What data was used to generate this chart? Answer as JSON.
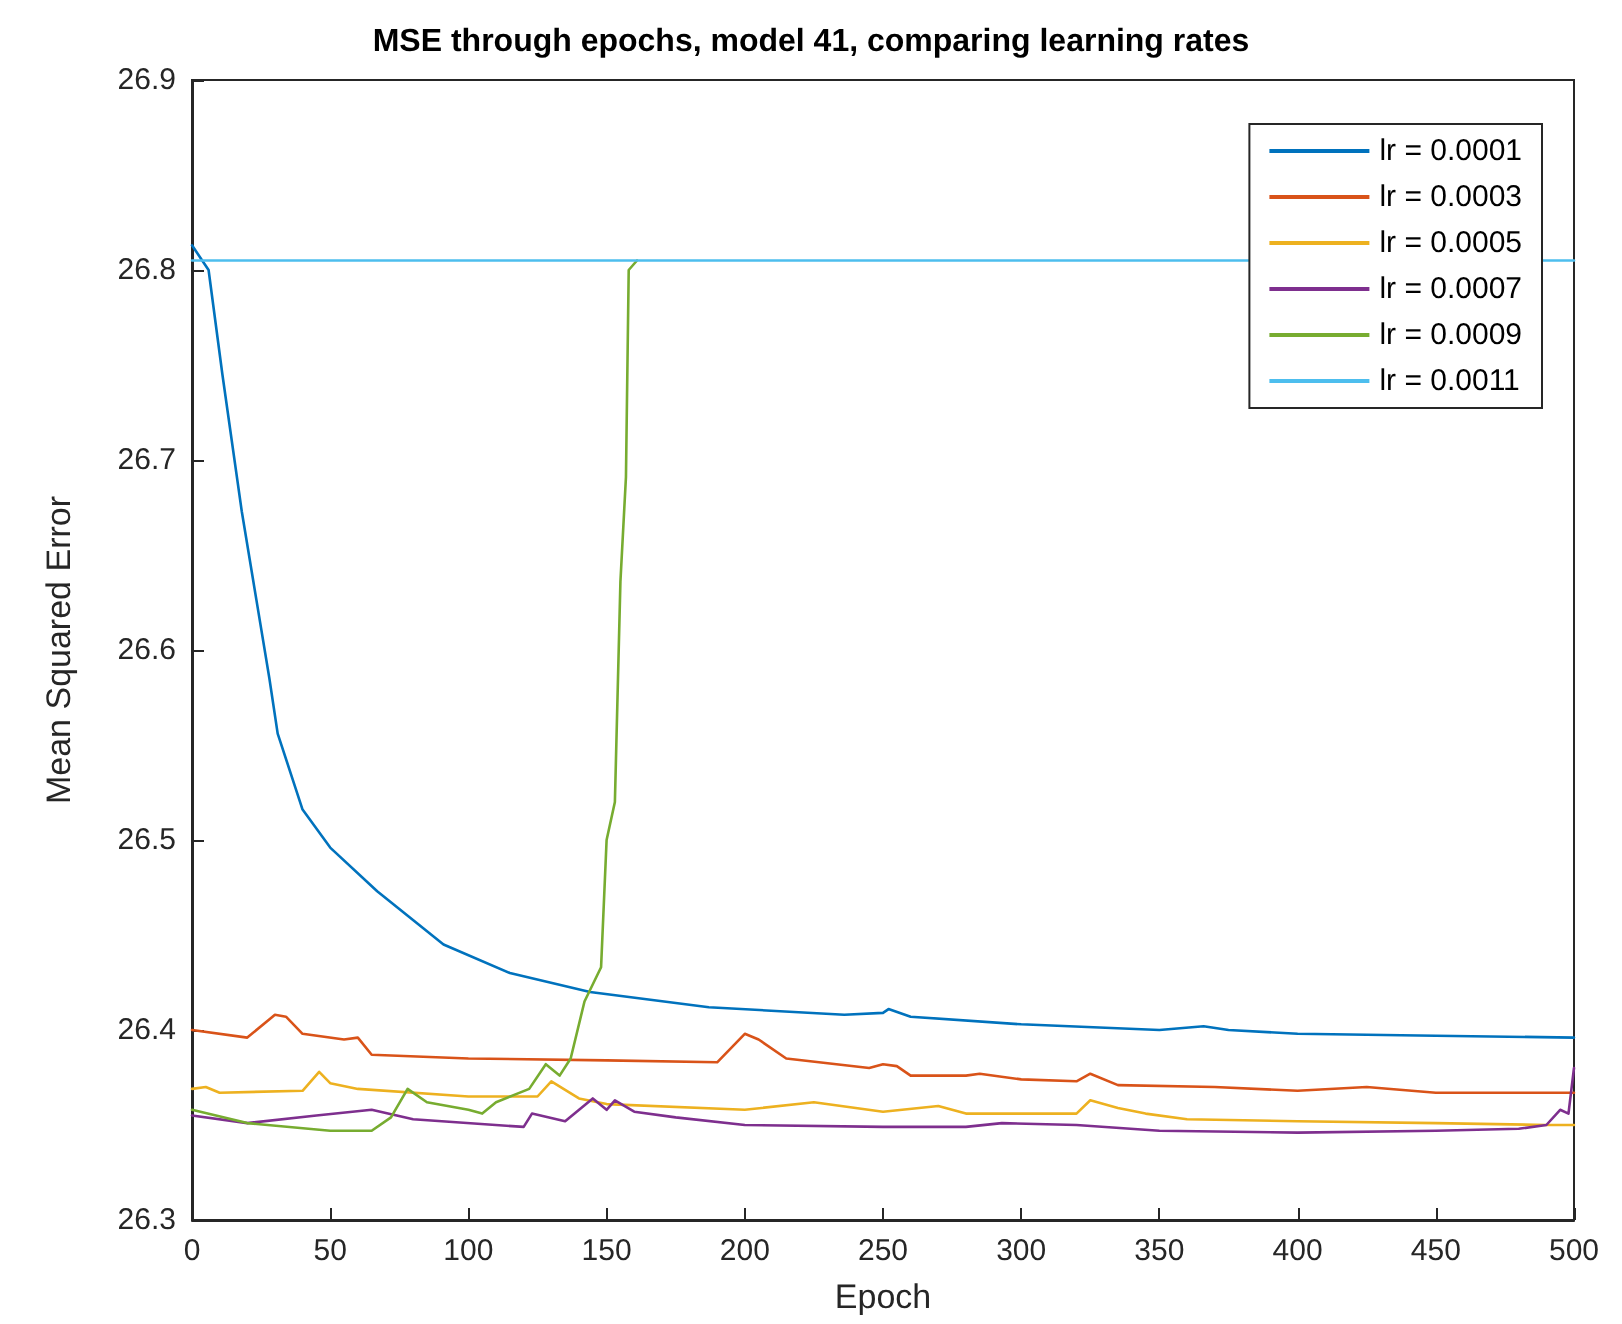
{
  "chart_data": {
    "type": "line",
    "title": "MSE through epochs, model 41, comparing learning rates",
    "xlabel": "Epoch",
    "ylabel": "Mean Squared Error",
    "xlim": [
      0,
      500
    ],
    "xticks": [
      0,
      50,
      100,
      150,
      200,
      250,
      300,
      350,
      400,
      450,
      500
    ],
    "ylim": [
      26.3,
      26.9
    ],
    "yticks": [
      26.3,
      26.4,
      26.5,
      26.6,
      26.7,
      26.8,
      26.9
    ],
    "grid": false,
    "legend": "top right",
    "marker": "none",
    "line_style": "solid",
    "series": [
      {
        "name": "lr = 0.0001",
        "color": "#0072bd",
        "x": [
          0,
          6,
          11,
          18,
          28,
          31,
          40,
          50,
          67,
          91,
          115,
          144,
          187,
          236,
          250,
          252,
          260,
          300,
          350,
          366,
          375,
          400,
          450,
          500
        ],
        "values": [
          26.813,
          26.8,
          26.745,
          26.673,
          26.585,
          26.556,
          26.516,
          26.496,
          26.473,
          26.445,
          26.43,
          26.42,
          26.412,
          26.408,
          26.409,
          26.411,
          26.407,
          26.403,
          26.4,
          26.402,
          26.4,
          26.398,
          26.397,
          26.396
        ]
      },
      {
        "name": "lr = 0.0003",
        "color": "#d95319",
        "x": [
          0,
          20,
          30,
          34,
          40,
          55,
          60,
          65,
          100,
          150,
          190,
          200,
          205,
          215,
          245,
          250,
          255,
          260,
          280,
          285,
          300,
          320,
          325,
          335,
          370,
          400,
          425,
          450,
          500
        ],
        "values": [
          26.4,
          26.396,
          26.408,
          26.407,
          26.398,
          26.395,
          26.396,
          26.387,
          26.385,
          26.384,
          26.383,
          26.398,
          26.395,
          26.385,
          26.38,
          26.382,
          26.381,
          26.376,
          26.376,
          26.377,
          26.374,
          26.373,
          26.377,
          26.371,
          26.37,
          26.368,
          26.37,
          26.367,
          26.367
        ]
      },
      {
        "name": "lr = 0.0005",
        "color": "#edb120",
        "x": [
          0,
          5,
          10,
          40,
          46,
          50,
          60,
          100,
          125,
          130,
          140,
          150,
          200,
          225,
          250,
          270,
          280,
          320,
          325,
          335,
          345,
          360,
          400,
          450,
          490,
          500
        ],
        "values": [
          26.369,
          26.37,
          26.367,
          26.368,
          26.378,
          26.372,
          26.369,
          26.365,
          26.365,
          26.373,
          26.364,
          26.361,
          26.358,
          26.362,
          26.357,
          26.36,
          26.356,
          26.356,
          26.363,
          26.359,
          26.356,
          26.353,
          26.352,
          26.351,
          26.35,
          26.35
        ]
      },
      {
        "name": "lr = 0.0007",
        "color": "#7e2f8e",
        "x": [
          0,
          20,
          45,
          65,
          80,
          120,
          123,
          135,
          145,
          150,
          153,
          160,
          175,
          200,
          250,
          280,
          293,
          320,
          350,
          400,
          450,
          480,
          490,
          495,
          498,
          500
        ],
        "values": [
          26.355,
          26.351,
          26.355,
          26.358,
          26.353,
          26.349,
          26.356,
          26.352,
          26.364,
          26.358,
          26.363,
          26.357,
          26.354,
          26.35,
          26.349,
          26.349,
          26.351,
          26.35,
          26.347,
          26.346,
          26.347,
          26.348,
          26.35,
          26.358,
          26.356,
          26.38
        ]
      },
      {
        "name": "lr = 0.0009",
        "color": "#77ac30",
        "x": [
          0,
          20,
          50,
          65,
          72,
          78,
          85,
          100,
          105,
          110,
          122,
          128,
          133,
          137,
          142,
          148,
          150,
          153,
          155,
          157,
          158,
          161
        ],
        "values": [
          26.358,
          26.351,
          26.347,
          26.347,
          26.354,
          26.369,
          26.362,
          26.358,
          26.356,
          26.362,
          26.369,
          26.382,
          26.376,
          26.385,
          26.415,
          26.433,
          26.5,
          26.52,
          26.636,
          26.691,
          26.8,
          26.805
        ]
      },
      {
        "name": "lr = 0.0011",
        "color": "#4dbeee",
        "x": [
          0,
          500
        ],
        "values": [
          26.805,
          26.805
        ]
      }
    ]
  }
}
